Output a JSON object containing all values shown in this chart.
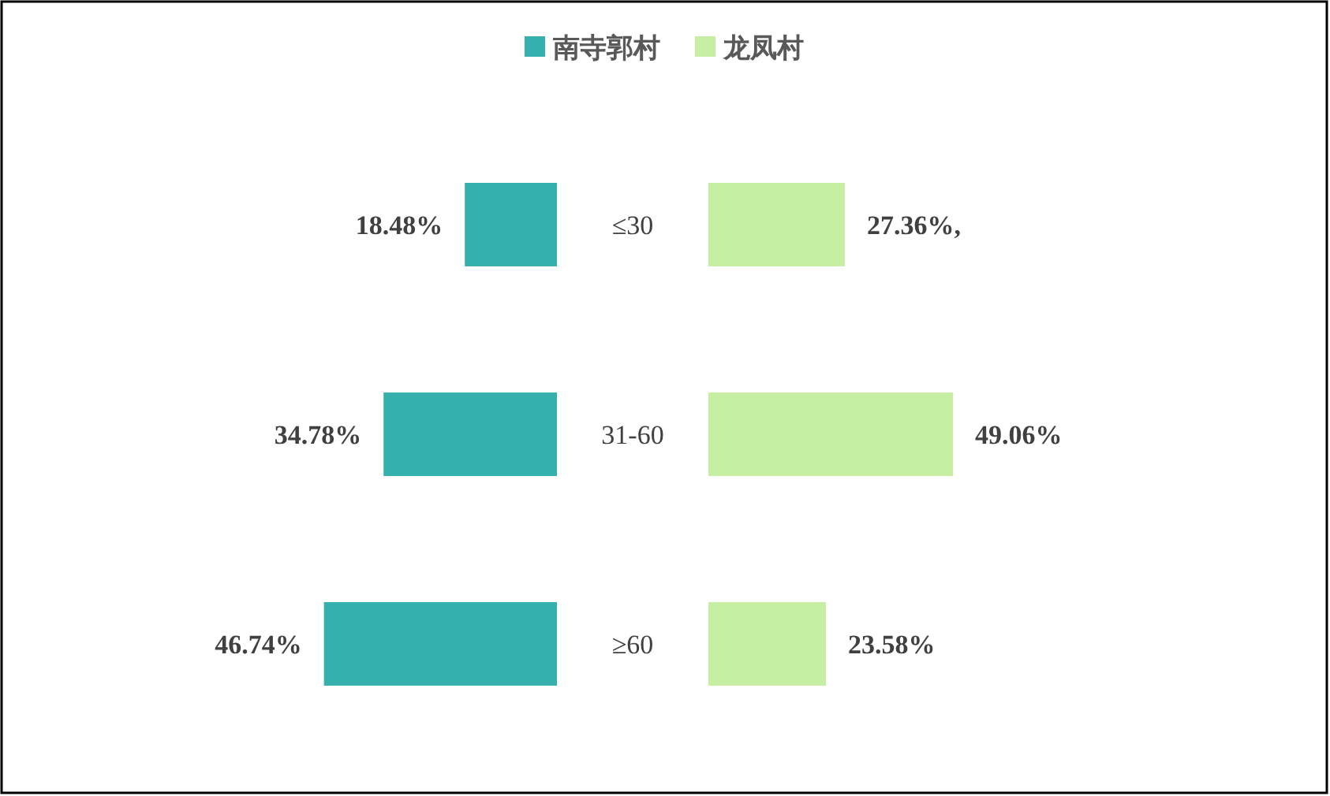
{
  "chart_data": [
    {
      "type": "bar",
      "orientation": "horizontal",
      "legend": "top",
      "categories": [
        "≤30",
        "31-60",
        "≥60"
      ],
      "series": [
        {
          "name": "南寺郭村",
          "color": "#36b0ac",
          "values": [
            18.48,
            34.78,
            46.74
          ],
          "value_labels": [
            "18.48%",
            "34.78%",
            "46.74%"
          ]
        }
      ]
    },
    {
      "type": "bar",
      "orientation": "horizontal",
      "legend": "top",
      "categories": [
        null,
        null,
        null
      ],
      "series": [
        {
          "name": "龙凤村",
          "color": "#c6efa4",
          "values": [
            27.36,
            49.06,
            23.58
          ],
          "value_labels": [
            "27.36%,",
            "49.06%",
            "23.58%"
          ]
        }
      ]
    }
  ]
}
